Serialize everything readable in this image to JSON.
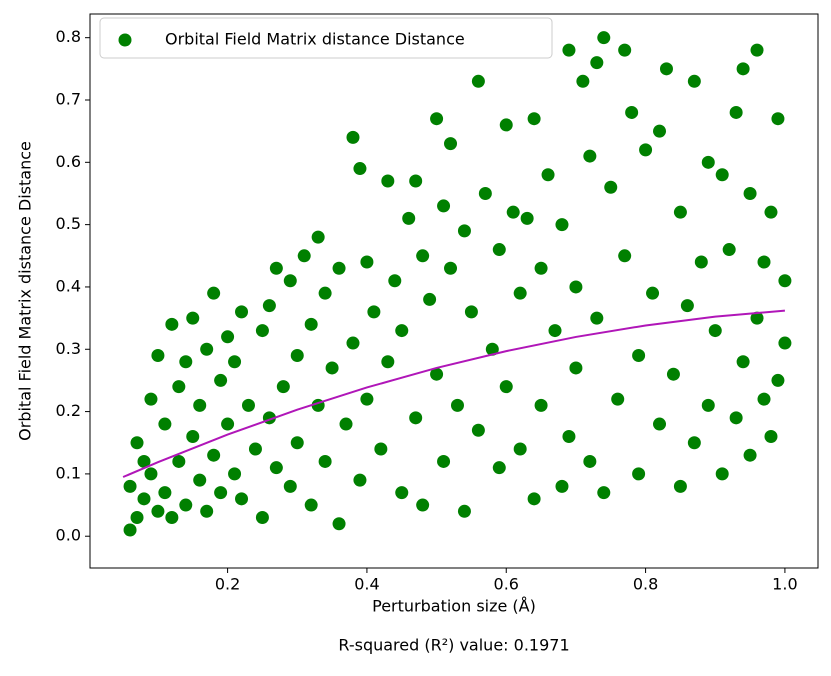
{
  "chart_data": {
    "type": "scatter",
    "x_label": "Perturbation size (Å)",
    "y_label": "Orbital Field Matrix distance Distance",
    "annotation": "R-squared (R²) value: 0.1971",
    "xlim": [
      0.0025,
      1.0475
    ],
    "ylim": [
      -0.051,
      0.838
    ],
    "xticks": [
      0.2,
      0.4,
      0.6,
      0.8,
      {
        "value": 1,
        "label": "1.0"
      }
    ],
    "yticks": [
      {
        "value": 0,
        "label": "0.0"
      },
      0.1,
      0.2,
      0.3,
      0.4,
      0.5,
      0.6,
      0.7,
      0.8
    ],
    "grid": false,
    "legend": "upper left",
    "series": [
      {
        "name": "Orbital Field Matrix distance Distance",
        "color": "#008000",
        "kind": "scatter",
        "x": [
          0.06,
          0.06,
          0.07,
          0.07,
          0.08,
          0.08,
          0.09,
          0.09,
          0.1,
          0.1,
          0.11,
          0.11,
          0.12,
          0.12,
          0.13,
          0.13,
          0.14,
          0.14,
          0.15,
          0.15,
          0.16,
          0.16,
          0.17,
          0.17,
          0.18,
          0.18,
          0.19,
          0.19,
          0.2,
          0.2,
          0.21,
          0.21,
          0.22,
          0.22,
          0.23,
          0.24,
          0.25,
          0.25,
          0.26,
          0.26,
          0.27,
          0.27,
          0.28,
          0.29,
          0.29,
          0.3,
          0.3,
          0.31,
          0.32,
          0.32,
          0.33,
          0.33,
          0.34,
          0.34,
          0.35,
          0.36,
          0.36,
          0.37,
          0.38,
          0.38,
          0.39,
          0.39,
          0.4,
          0.4,
          0.41,
          0.42,
          0.43,
          0.43,
          0.44,
          0.45,
          0.45,
          0.46,
          0.47,
          0.47,
          0.48,
          0.48,
          0.49,
          0.5,
          0.5,
          0.51,
          0.51,
          0.52,
          0.52,
          0.53,
          0.54,
          0.54,
          0.55,
          0.56,
          0.56,
          0.57,
          0.58,
          0.59,
          0.59,
          0.6,
          0.6,
          0.61,
          0.62,
          0.62,
          0.63,
          0.64,
          0.64,
          0.65,
          0.65,
          0.66,
          0.67,
          0.68,
          0.68,
          0.69,
          0.69,
          0.7,
          0.7,
          0.71,
          0.72,
          0.72,
          0.73,
          0.73,
          0.74,
          0.74,
          0.75,
          0.76,
          0.77,
          0.77,
          0.78,
          0.79,
          0.79,
          0.8,
          0.81,
          0.82,
          0.82,
          0.83,
          0.84,
          0.85,
          0.85,
          0.86,
          0.87,
          0.87,
          0.88,
          0.89,
          0.89,
          0.9,
          0.91,
          0.91,
          0.92,
          0.93,
          0.93,
          0.94,
          0.94,
          0.95,
          0.95,
          0.96,
          0.96,
          0.97,
          0.97,
          0.98,
          0.98,
          0.99,
          0.99,
          1.0,
          1.0
        ],
        "values": [
          0.01,
          0.08,
          0.15,
          0.03,
          0.12,
          0.06,
          0.1,
          0.22,
          0.29,
          0.04,
          0.18,
          0.07,
          0.34,
          0.03,
          0.24,
          0.12,
          0.05,
          0.28,
          0.16,
          0.35,
          0.09,
          0.21,
          0.3,
          0.04,
          0.39,
          0.13,
          0.25,
          0.07,
          0.32,
          0.18,
          0.1,
          0.28,
          0.36,
          0.06,
          0.21,
          0.14,
          0.33,
          0.03,
          0.37,
          0.19,
          0.43,
          0.11,
          0.24,
          0.41,
          0.08,
          0.29,
          0.15,
          0.45,
          0.34,
          0.05,
          0.48,
          0.21,
          0.39,
          0.12,
          0.27,
          0.02,
          0.43,
          0.18,
          0.64,
          0.31,
          0.59,
          0.09,
          0.44,
          0.22,
          0.36,
          0.14,
          0.57,
          0.28,
          0.41,
          0.07,
          0.33,
          0.51,
          0.57,
          0.19,
          0.45,
          0.05,
          0.38,
          0.67,
          0.26,
          0.53,
          0.12,
          0.63,
          0.43,
          0.21,
          0.49,
          0.04,
          0.36,
          0.73,
          0.17,
          0.55,
          0.3,
          0.46,
          0.11,
          0.66,
          0.24,
          0.52,
          0.39,
          0.14,
          0.51,
          0.67,
          0.06,
          0.43,
          0.21,
          0.58,
          0.33,
          0.5,
          0.08,
          0.78,
          0.16,
          0.4,
          0.27,
          0.73,
          0.61,
          0.12,
          0.76,
          0.35,
          0.8,
          0.07,
          0.56,
          0.22,
          0.78,
          0.45,
          0.68,
          0.29,
          0.1,
          0.62,
          0.39,
          0.18,
          0.65,
          0.75,
          0.26,
          0.08,
          0.52,
          0.37,
          0.73,
          0.15,
          0.44,
          0.6,
          0.21,
          0.33,
          0.58,
          0.1,
          0.46,
          0.68,
          0.19,
          0.75,
          0.28,
          0.55,
          0.13,
          0.78,
          0.35,
          0.44,
          0.22,
          0.52,
          0.16,
          0.67,
          0.25,
          0.41,
          0.31
        ]
      },
      {
        "color": "#b016b8",
        "kind": "line",
        "x": [
          0.05,
          0.1,
          0.2,
          0.3,
          0.4,
          0.5,
          0.6,
          0.7,
          0.8,
          0.9,
          1.0
        ],
        "values": [
          0.095,
          0.1188,
          0.1631,
          0.2031,
          0.2387,
          0.27,
          0.297,
          0.3198,
          0.3382,
          0.3523,
          0.362
        ]
      }
    ]
  }
}
